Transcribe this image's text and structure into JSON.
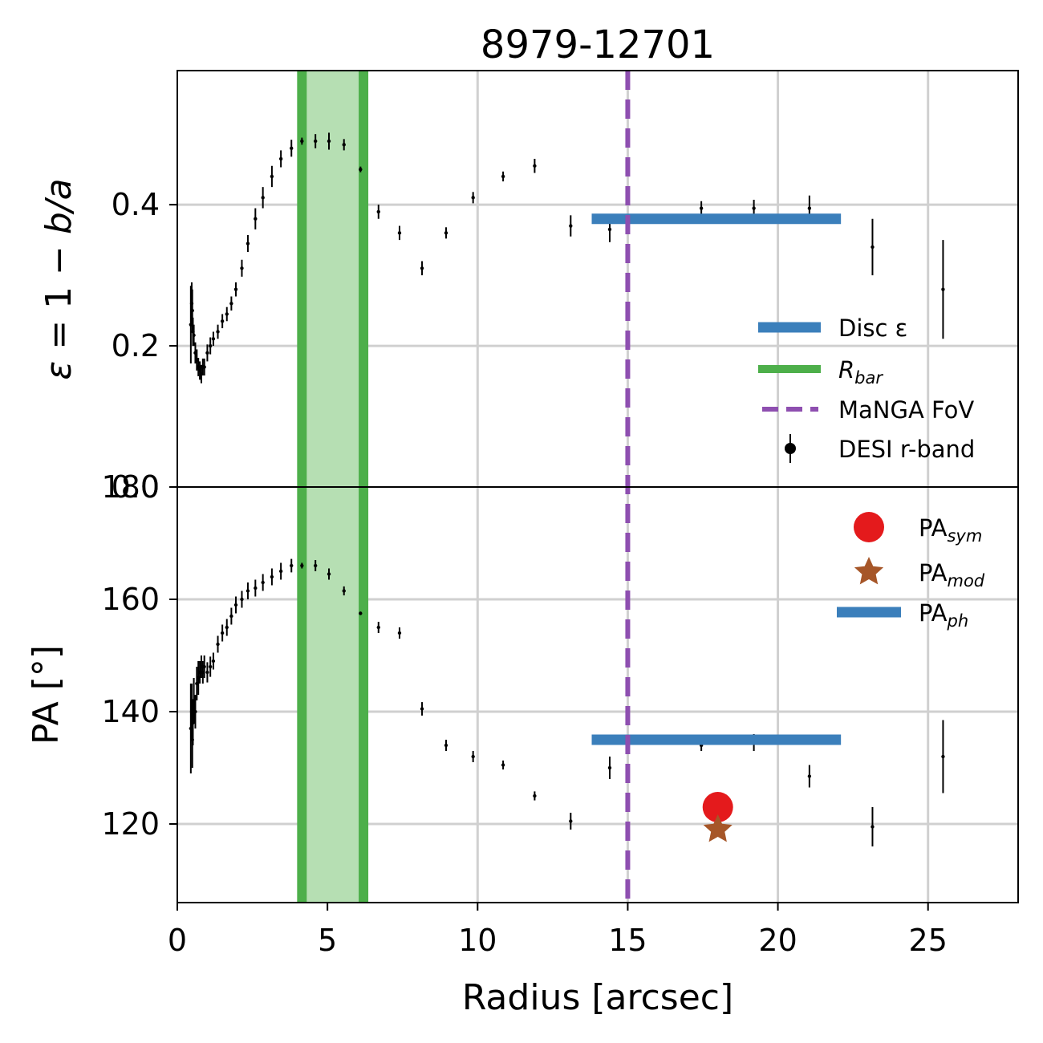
{
  "chart_data": [
    {
      "panel": "top",
      "type": "scatter",
      "title": "8979-12701",
      "ylabel": "ε = 1 − b/a",
      "xlim": [
        0,
        28
      ],
      "ylim": [
        0.0,
        0.59
      ],
      "yticks": [
        0.2,
        0.4
      ],
      "ytick_labels": [
        "0.2",
        "0.4"
      ],
      "grid": true,
      "legend_position": "lower-right",
      "legend": [
        {
          "key": "disc",
          "label": "Disc ε",
          "color": "#3b7fbb"
        },
        {
          "key": "rbar",
          "label": "R_bar",
          "color": "#4daf4a"
        },
        {
          "key": "fov",
          "label": "MaNGA FoV",
          "color": "#8e4fb0"
        },
        {
          "key": "desi",
          "label": "DESI r-band",
          "color": "#000000"
        }
      ],
      "series": [
        {
          "name": "DESI r-band",
          "x": [
            0.45,
            0.48,
            0.5,
            0.52,
            0.55,
            0.6,
            0.65,
            0.7,
            0.75,
            0.8,
            0.85,
            0.9,
            1.0,
            1.1,
            1.2,
            1.35,
            1.5,
            1.65,
            1.8,
            1.95,
            2.15,
            2.35,
            2.6,
            2.85,
            3.15,
            3.45,
            3.8,
            4.15,
            4.6,
            5.05,
            5.55,
            6.1,
            6.7,
            7.4,
            8.15,
            8.95,
            9.85,
            10.85,
            11.9,
            13.1,
            14.4,
            15.85,
            17.45,
            19.2,
            21.05,
            23.15,
            25.5
          ],
          "y": [
            0.23,
            0.26,
            0.25,
            0.22,
            0.215,
            0.19,
            0.18,
            0.17,
            0.165,
            0.16,
            0.17,
            0.17,
            0.19,
            0.2,
            0.21,
            0.22,
            0.235,
            0.245,
            0.26,
            0.28,
            0.31,
            0.345,
            0.38,
            0.41,
            0.44,
            0.465,
            0.48,
            0.49,
            0.49,
            0.49,
            0.485,
            0.45,
            0.39,
            0.36,
            0.31,
            0.36,
            0.41,
            0.44,
            0.455,
            0.37,
            0.365,
            0.38,
            0.395,
            0.395,
            0.395,
            0.34,
            0.28
          ],
          "yerr": [
            0.055,
            0.03,
            0.03,
            0.02,
            0.015,
            0.015,
            0.015,
            0.013,
            0.013,
            0.013,
            0.012,
            0.012,
            0.012,
            0.012,
            0.01,
            0.01,
            0.01,
            0.01,
            0.01,
            0.01,
            0.012,
            0.012,
            0.015,
            0.015,
            0.015,
            0.012,
            0.012,
            0.005,
            0.01,
            0.012,
            0.008,
            0.004,
            0.01,
            0.01,
            0.01,
            0.008,
            0.008,
            0.007,
            0.01,
            0.015,
            0.018,
            0.003,
            0.01,
            0.012,
            0.018,
            0.04,
            0.07
          ]
        },
        {
          "name": "Disc ε",
          "x": [
            13.8,
            22.1
          ],
          "y": [
            0.38,
            0.38
          ]
        },
        {
          "name": "R_bar",
          "x": [
            4.15,
            6.2
          ]
        },
        {
          "name": "MaNGA FoV",
          "x": [
            15.0
          ]
        }
      ]
    },
    {
      "panel": "bottom",
      "type": "scatter",
      "xlabel": "Radius [arcsec]",
      "ylabel": "PA [°]",
      "xlim": [
        0,
        28
      ],
      "ylim": [
        106,
        180
      ],
      "xticks": [
        0,
        5,
        10,
        15,
        20,
        25
      ],
      "xtick_labels": [
        "0",
        "5",
        "10",
        "15",
        "20",
        "25"
      ],
      "yticks": [
        120,
        140,
        160,
        180
      ],
      "ytick_labels": [
        "120",
        "140",
        "160",
        "180"
      ],
      "overlapping_label": "0.0",
      "grid": true,
      "legend_position": "upper-right",
      "legend": [
        {
          "key": "sym",
          "label": "PA",
          "sub": "sym",
          "color": "#e41a1c"
        },
        {
          "key": "mod",
          "label": "PA",
          "sub": "mod",
          "color": "#a65628"
        },
        {
          "key": "ph",
          "label": "PA",
          "sub": "ph",
          "color": "#3b7fbb"
        }
      ],
      "series": [
        {
          "name": "DESI r-band",
          "x": [
            0.45,
            0.48,
            0.5,
            0.52,
            0.55,
            0.6,
            0.65,
            0.7,
            0.75,
            0.8,
            0.85,
            0.9,
            1.0,
            1.1,
            1.2,
            1.35,
            1.5,
            1.65,
            1.8,
            1.95,
            2.15,
            2.35,
            2.6,
            2.85,
            3.15,
            3.45,
            3.8,
            4.15,
            4.6,
            5.05,
            5.55,
            6.1,
            6.7,
            7.4,
            8.15,
            8.95,
            9.85,
            10.85,
            11.9,
            13.1,
            14.4,
            15.85,
            17.45,
            19.2,
            21.05,
            23.15,
            25.5
          ],
          "y": [
            137,
            140,
            135,
            138,
            142,
            140,
            145,
            146,
            147,
            148,
            147,
            148,
            147,
            148,
            149,
            152,
            154,
            155,
            157,
            159,
            160,
            161.5,
            162,
            163,
            164,
            165,
            166,
            166,
            166,
            164.5,
            161.5,
            157.5,
            155,
            154,
            140.5,
            134,
            132,
            130.5,
            125,
            120.5,
            130,
            135,
            134,
            134.5,
            128.5,
            119.5,
            132
          ],
          "yerr": [
            8,
            5,
            5,
            4,
            4,
            3,
            3,
            3,
            2,
            2,
            2,
            2,
            1.8,
            1.8,
            1.5,
            1.5,
            1.5,
            1.5,
            1.5,
            1.5,
            1.5,
            1.5,
            1.5,
            1.5,
            1.5,
            1.5,
            1.2,
            0.5,
            1,
            1,
            0.8,
            0.3,
            1,
            1,
            1.2,
            1,
            1,
            0.8,
            0.8,
            1.5,
            2,
            0.3,
            1,
            1.5,
            2,
            3.5,
            6.5
          ]
        },
        {
          "name": "PA_ph",
          "x": [
            13.8,
            22.1
          ],
          "y": [
            135,
            135
          ]
        },
        {
          "name": "PA_sym",
          "x": [
            18.0
          ],
          "y": [
            123
          ]
        },
        {
          "name": "PA_mod",
          "x": [
            18.0
          ],
          "y": [
            119
          ]
        }
      ]
    }
  ]
}
